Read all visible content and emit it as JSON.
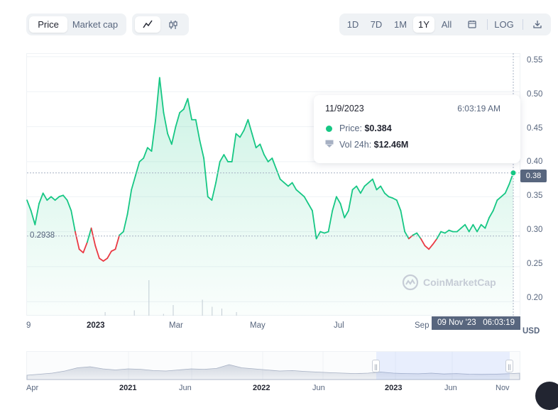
{
  "tabs": {
    "price": "Price",
    "market_cap": "Market cap"
  },
  "icons": {
    "line": "line-chart-icon",
    "candle": "candlestick-icon",
    "calendar": "calendar-icon",
    "download": "download-icon",
    "watermark": "coinmarketcap-logo"
  },
  "ranges": [
    "1D",
    "7D",
    "1M",
    "1Y",
    "All"
  ],
  "active_range": "1Y",
  "log_label": "LOG",
  "tooltip": {
    "date": "11/9/2023",
    "time": "6:03:19 AM",
    "price_label": "Price:",
    "price_value": "$0.384",
    "vol_label": "Vol 24h:",
    "vol_value": "$12.46M"
  },
  "current_price_tag": "0.38",
  "reference_price": "0.2938",
  "crosshair_time": "09 Nov '23   06:03:19",
  "currency": "USD",
  "watermark": "CoinMarketCap",
  "navigator_labels": [
    "Apr",
    "2021",
    "Jun",
    "2022",
    "Jun",
    "2023",
    "Jun",
    "Nov"
  ],
  "colors": {
    "up": "#16c784",
    "down": "#ea3943",
    "axis_text": "#58667e",
    "tag_bg": "#58667e"
  },
  "chart_data": {
    "type": "area",
    "x_tick_labels": [
      "9",
      "2023",
      "Mar",
      "May",
      "Jul",
      "Sep"
    ],
    "y_tick_labels": [
      "0.55",
      "0.50",
      "0.45",
      "0.40",
      "0.35",
      "0.30",
      "0.25",
      "0.20"
    ],
    "ylim": [
      0.18,
      0.555
    ],
    "reference_line": 0.2938,
    "price_series": [
      0.345,
      0.33,
      0.31,
      0.34,
      0.355,
      0.345,
      0.35,
      0.345,
      0.35,
      0.352,
      0.345,
      0.33,
      0.3,
      0.275,
      0.27,
      0.285,
      0.305,
      0.28,
      0.262,
      0.258,
      0.262,
      0.272,
      0.275,
      0.295,
      0.3,
      0.325,
      0.36,
      0.38,
      0.4,
      0.405,
      0.42,
      0.415,
      0.46,
      0.52,
      0.47,
      0.44,
      0.425,
      0.45,
      0.47,
      0.475,
      0.49,
      0.46,
      0.46,
      0.43,
      0.405,
      0.35,
      0.345,
      0.37,
      0.4,
      0.41,
      0.4,
      0.4,
      0.44,
      0.435,
      0.445,
      0.46,
      0.44,
      0.42,
      0.425,
      0.41,
      0.4,
      0.405,
      0.39,
      0.375,
      0.37,
      0.365,
      0.37,
      0.36,
      0.355,
      0.35,
      0.34,
      0.33,
      0.29,
      0.3,
      0.298,
      0.3,
      0.33,
      0.35,
      0.34,
      0.32,
      0.33,
      0.36,
      0.365,
      0.355,
      0.365,
      0.37,
      0.375,
      0.36,
      0.365,
      0.355,
      0.35,
      0.348,
      0.345,
      0.33,
      0.3,
      0.29,
      0.295,
      0.298,
      0.29,
      0.28,
      0.275,
      0.282,
      0.29,
      0.3,
      0.298,
      0.302,
      0.3,
      0.3,
      0.305,
      0.31,
      0.3,
      0.31,
      0.3,
      0.31,
      0.305,
      0.32,
      0.33,
      0.345,
      0.35,
      0.355,
      0.368,
      0.384
    ],
    "volume_spikes": [
      [
        0.16,
        0.02
      ],
      [
        0.22,
        0.03
      ],
      [
        0.25,
        0.2
      ],
      [
        0.28,
        0.01
      ],
      [
        0.3,
        0.06
      ],
      [
        0.36,
        0.09
      ],
      [
        0.38,
        0.05
      ],
      [
        0.4,
        0.04
      ],
      [
        0.43,
        0.02
      ]
    ]
  }
}
